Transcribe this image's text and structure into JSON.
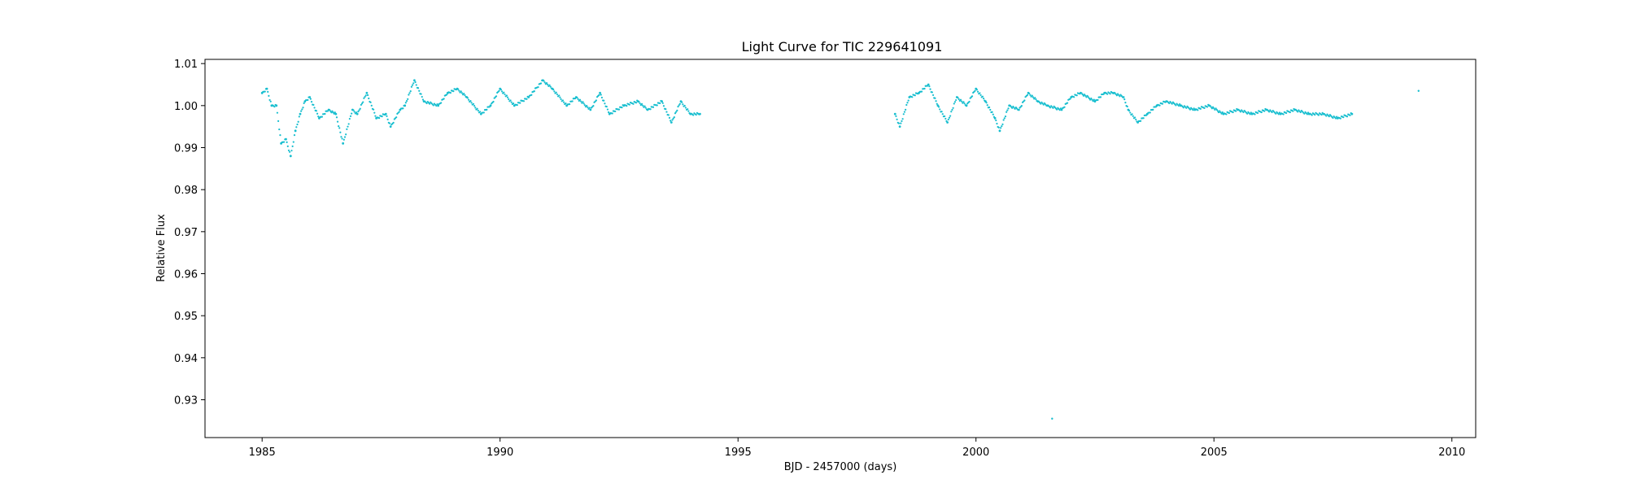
{
  "chart_data": {
    "type": "scatter",
    "title": "Light Curve for TIC 229641091",
    "xlabel": "BJD - 2457000 (days)",
    "ylabel": "Relative Flux",
    "xlim": [
      1983.8,
      2010.5
    ],
    "ylim": [
      0.921,
      1.011
    ],
    "xticks": [
      1985,
      1990,
      1995,
      2000,
      2005,
      2010
    ],
    "yticks": [
      0.93,
      0.94,
      0.95,
      0.96,
      0.97,
      0.98,
      0.99,
      1.0,
      1.01
    ],
    "ytick_labels": [
      "0.93",
      "0.94",
      "0.95",
      "0.96",
      "0.97",
      "0.98",
      "0.99",
      "1.00",
      "1.01"
    ],
    "grid": false,
    "marker_color": "#17becf",
    "series": [
      {
        "segments": [
          {
            "x": [
              1985.0,
              1985.1,
              1985.2,
              1985.3,
              1985.4,
              1985.5,
              1985.6,
              1985.7,
              1985.8,
              1985.9,
              1986.0,
              1986.2,
              1986.4,
              1986.55,
              1986.7,
              1986.9,
              1987.0,
              1987.2,
              1987.4,
              1987.6,
              1987.7,
              1987.9,
              1988.0,
              1988.2,
              1988.4,
              1988.7,
              1988.9,
              1989.1,
              1989.3,
              1989.6,
              1989.8,
              1990.0,
              1990.3,
              1990.6,
              1990.9,
              1991.1,
              1991.4,
              1991.6,
              1991.9,
              1992.1,
              1992.3,
              1992.6,
              1992.9,
              1993.1,
              1993.4,
              1993.6,
              1993.8,
              1994.0,
              1994.2
            ],
            "y": [
              1.003,
              1.004,
              1.0,
              1.0,
              0.991,
              0.992,
              0.988,
              0.994,
              0.998,
              1.001,
              1.002,
              0.997,
              0.999,
              0.998,
              0.991,
              0.999,
              0.998,
              1.003,
              0.997,
              0.998,
              0.995,
              0.999,
              1.0,
              1.006,
              1.001,
              1.0,
              1.003,
              1.004,
              1.002,
              0.998,
              1.0,
              1.004,
              1.0,
              1.002,
              1.006,
              1.004,
              1.0,
              1.002,
              0.999,
              1.003,
              0.998,
              1.0,
              1.001,
              0.999,
              1.001,
              0.996,
              1.001,
              0.998,
              0.998
            ]
          },
          {
            "x": [
              1998.3,
              1998.4,
              1998.6,
              1998.8,
              1999.0,
              1999.2,
              1999.4,
              1999.6,
              1999.8,
              2000.0,
              2000.2,
              2000.4,
              2000.5,
              2000.7,
              2000.9,
              2001.1,
              2001.3,
              2001.5,
              2001.8,
              2002.0,
              2002.2,
              2002.5,
              2002.7,
              2002.9,
              2003.1,
              2003.2,
              2003.4,
              2003.6,
              2003.8,
              2004.0,
              2004.3,
              2004.6,
              2004.9,
              2005.2,
              2005.5,
              2005.8,
              2006.1,
              2006.4,
              2006.7,
              2007.0,
              2007.3,
              2007.6,
              2007.9
            ],
            "y": [
              0.998,
              0.995,
              1.002,
              1.003,
              1.005,
              1.0,
              0.996,
              1.002,
              1.0,
              1.004,
              1.001,
              0.997,
              0.994,
              1.0,
              0.999,
              1.003,
              1.001,
              1.0,
              0.999,
              1.002,
              1.003,
              1.001,
              1.003,
              1.003,
              1.002,
              0.999,
              0.996,
              0.998,
              1.0,
              1.001,
              1.0,
              0.999,
              1.0,
              0.998,
              0.999,
              0.998,
              0.999,
              0.998,
              0.999,
              0.998,
              0.998,
              0.997,
              0.998
            ]
          }
        ],
        "outliers": {
          "x": [
            2001.6,
            2009.3
          ],
          "y": [
            0.9255,
            1.0035
          ]
        }
      }
    ]
  }
}
